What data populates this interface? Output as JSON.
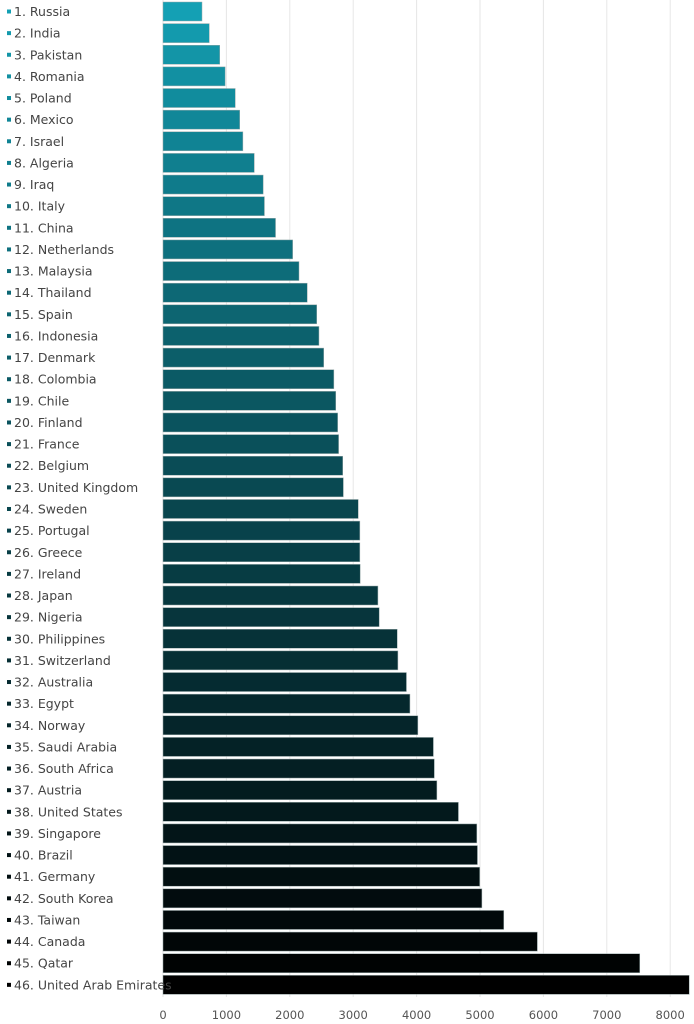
{
  "chart_data": {
    "type": "bar",
    "orientation": "horizontal",
    "title": "",
    "xlabel": "",
    "ylabel": "",
    "xlim": [
      0,
      8300
    ],
    "grid": true,
    "legend": "none",
    "x_ticks": [
      "0",
      "1000",
      "2000",
      "3000",
      "4000",
      "5000",
      "6000",
      "7000",
      "8000"
    ],
    "colors": {
      "start": "#14a0b4",
      "end": "#000000"
    },
    "categories": [
      "1. Russia",
      "2. India",
      "3. Pakistan",
      "4. Romania",
      "5. Poland",
      "6. Mexico",
      "7. Israel",
      "8. Algeria",
      "9. Iraq",
      "10. Italy",
      "11. China",
      "12. Netherlands",
      "13. Malaysia",
      "14. Thailand",
      "15. Spain",
      "16. Indonesia",
      "17. Denmark",
      "18. Colombia",
      "19. Chile",
      "20. Finland",
      "21. France",
      "22. Belgium",
      "23. United Kingdom",
      "24. Sweden",
      "25. Portugal",
      "26. Greece",
      "27. Ireland",
      "28. Japan",
      "29. Nigeria",
      "30. Philippines",
      "31. Switzerland",
      "32. Australia",
      "33. Egypt",
      "34. Norway",
      "35. Saudi Arabia",
      "36. South Africa",
      "37. Austria",
      "38. United States",
      "39. Singapore",
      "40. Brazil",
      "41. Germany",
      "42. South Korea",
      "43. Taiwan",
      "44. Canada",
      "45. Qatar",
      "46. United Arab Emirates"
    ],
    "values": [
      615,
      730,
      895,
      980,
      1140,
      1210,
      1260,
      1440,
      1580,
      1600,
      1775,
      2045,
      2145,
      2275,
      2425,
      2460,
      2535,
      2695,
      2725,
      2755,
      2770,
      2835,
      2845,
      3080,
      3105,
      3105,
      3110,
      3390,
      3410,
      3695,
      3705,
      3840,
      3895,
      4020,
      4265,
      4280,
      4320,
      4660,
      4950,
      4960,
      4995,
      5030,
      5375,
      5905,
      7520,
      8300
    ]
  }
}
